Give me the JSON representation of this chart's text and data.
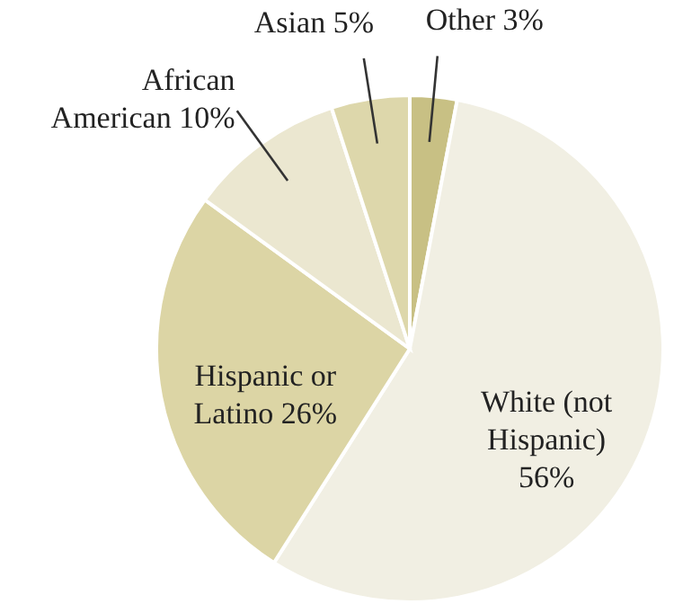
{
  "chart_data": {
    "type": "pie",
    "categories": [
      "Other",
      "White (not Hispanic)",
      "Hispanic or Latino",
      "African American",
      "Asian"
    ],
    "values": [
      3,
      56,
      26,
      10,
      5
    ],
    "value_labels": [
      "3%",
      "56%",
      "26%",
      "10%",
      "5%"
    ],
    "colors": [
      "#c8c084",
      "#f1efe3",
      "#dcd5a5",
      "#ebe7d0",
      "#ddd7ab"
    ]
  }
}
